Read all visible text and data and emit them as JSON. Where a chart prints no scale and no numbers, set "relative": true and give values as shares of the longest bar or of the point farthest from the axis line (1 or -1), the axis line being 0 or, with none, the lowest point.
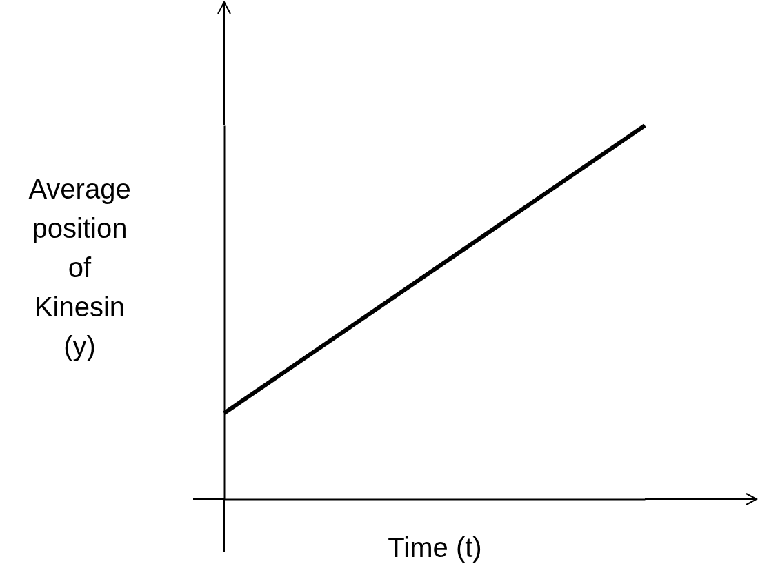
{
  "chart_data": {
    "type": "line",
    "xlabel": "Time (t)",
    "ylabel": "Average position of Kinesin (y)",
    "relative": true,
    "categories": [
      null,
      null
    ],
    "series": [
      {
        "color": "#000000",
        "values": [
          0.23,
          1
        ]
      }
    ],
    "marker": "none"
  }
}
